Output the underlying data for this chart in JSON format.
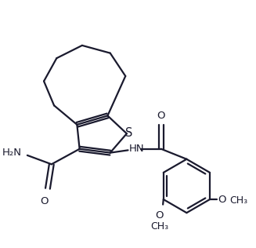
{
  "background_color": "#ffffff",
  "line_color": "#1a1a2e",
  "line_width": 1.6,
  "font_size": 9.5,
  "figsize": [
    3.27,
    3.16
  ],
  "dpi": 100,
  "xlim": [
    0,
    10
  ],
  "ylim": [
    0,
    9.65
  ]
}
